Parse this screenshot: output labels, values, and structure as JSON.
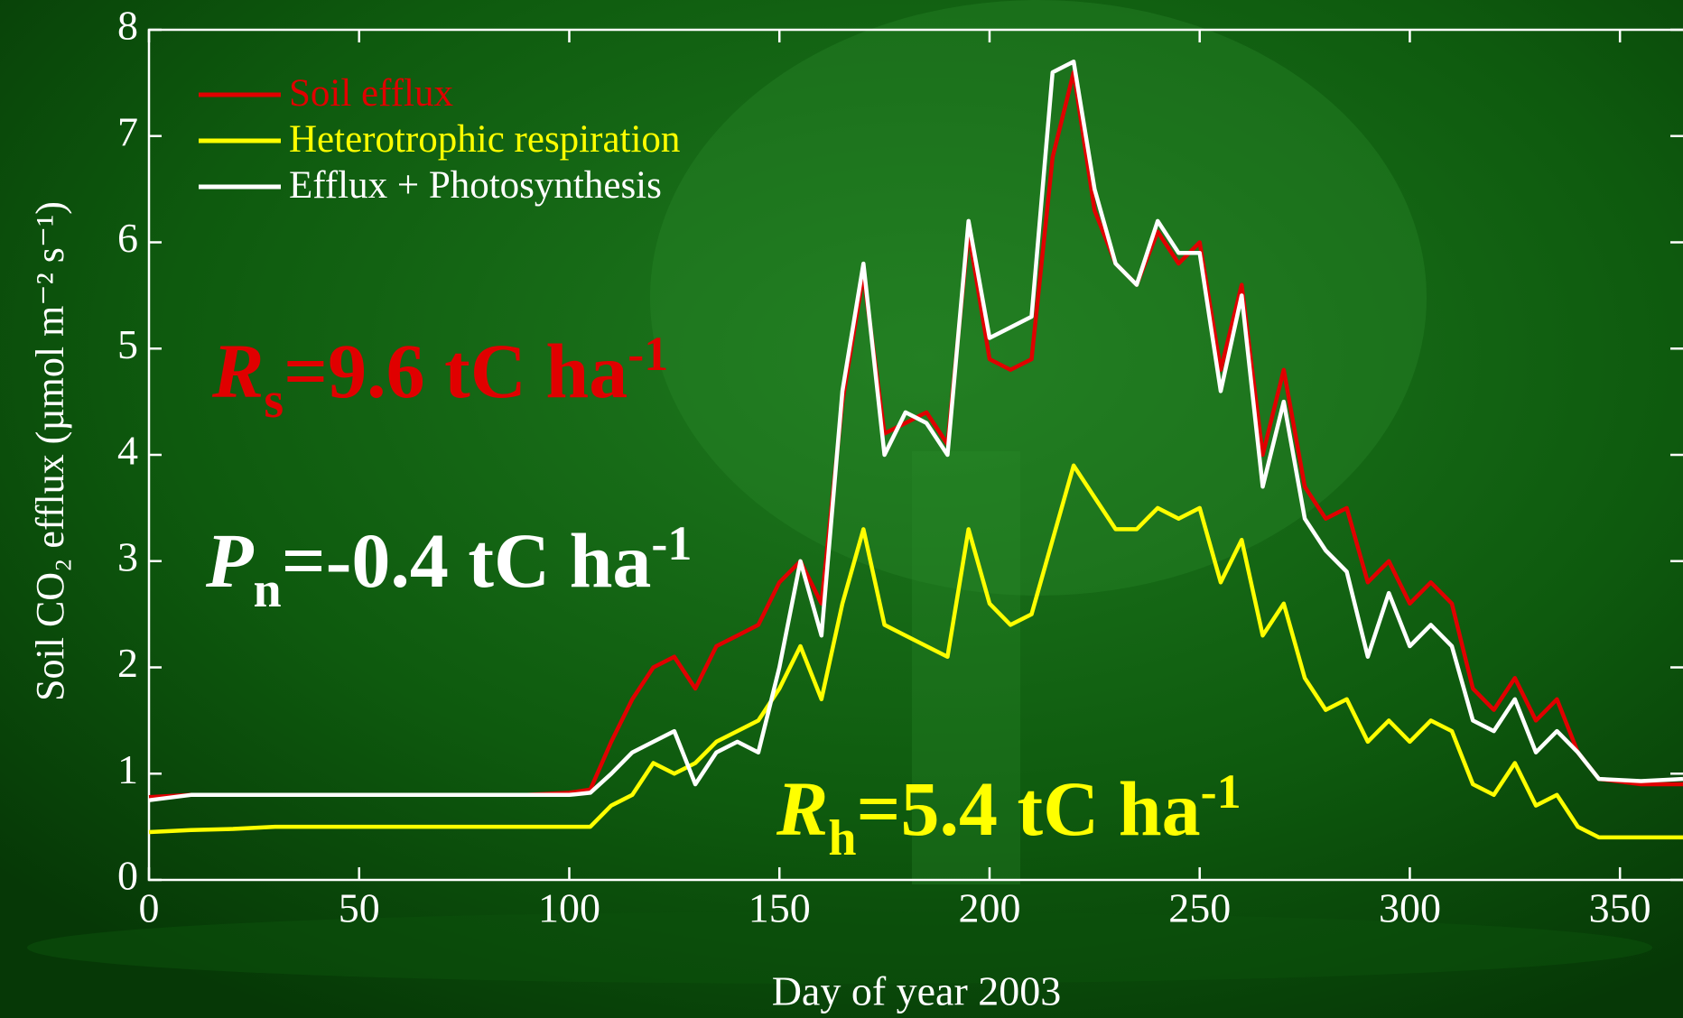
{
  "chart_data": {
    "type": "line",
    "xlabel": "Day of year 2003",
    "ylabel": "Soil CO₂ efflux (µmol m⁻² s⁻¹)",
    "x": [
      0,
      10,
      20,
      30,
      40,
      50,
      60,
      70,
      80,
      90,
      100,
      105,
      110,
      115,
      120,
      125,
      130,
      135,
      140,
      145,
      150,
      155,
      160,
      165,
      170,
      175,
      180,
      185,
      190,
      195,
      200,
      205,
      210,
      215,
      220,
      225,
      230,
      235,
      240,
      245,
      250,
      255,
      260,
      265,
      270,
      275,
      280,
      285,
      290,
      295,
      300,
      305,
      310,
      315,
      320,
      325,
      330,
      335,
      340,
      345,
      355,
      365
    ],
    "series": [
      {
        "name": "Soil efflux",
        "color": "#e00000",
        "values": [
          0.78,
          0.8,
          0.8,
          0.8,
          0.8,
          0.8,
          0.8,
          0.8,
          0.8,
          0.8,
          0.82,
          0.85,
          1.3,
          1.7,
          2.0,
          2.1,
          1.8,
          2.2,
          2.3,
          2.4,
          2.8,
          3.0,
          2.6,
          4.5,
          5.7,
          4.2,
          4.3,
          4.4,
          4.1,
          6.1,
          4.9,
          4.8,
          4.9,
          6.8,
          7.6,
          6.3,
          5.8,
          5.6,
          6.1,
          5.8,
          6.0,
          4.8,
          5.6,
          4.0,
          4.8,
          3.7,
          3.4,
          3.5,
          2.8,
          3.0,
          2.6,
          2.8,
          2.6,
          1.8,
          1.6,
          1.9,
          1.5,
          1.7,
          1.2,
          0.95,
          0.9,
          0.9
        ]
      },
      {
        "name": "Heterotrophic respiration",
        "color": "#ffff00",
        "values": [
          0.45,
          0.47,
          0.48,
          0.5,
          0.5,
          0.5,
          0.5,
          0.5,
          0.5,
          0.5,
          0.5,
          0.5,
          0.7,
          0.8,
          1.1,
          1.0,
          1.1,
          1.3,
          1.4,
          1.5,
          1.8,
          2.2,
          1.7,
          2.6,
          3.3,
          2.4,
          2.3,
          2.2,
          2.1,
          3.3,
          2.6,
          2.4,
          2.5,
          3.2,
          3.9,
          3.6,
          3.3,
          3.3,
          3.5,
          3.4,
          3.5,
          2.8,
          3.2,
          2.3,
          2.6,
          1.9,
          1.6,
          1.7,
          1.3,
          1.5,
          1.3,
          1.5,
          1.4,
          0.9,
          0.8,
          1.1,
          0.7,
          0.8,
          0.5,
          0.4,
          0.4,
          0.4
        ]
      },
      {
        "name": "Efflux + Photosynthesis",
        "color": "#ffffff",
        "values": [
          0.75,
          0.8,
          0.8,
          0.8,
          0.8,
          0.8,
          0.8,
          0.8,
          0.8,
          0.8,
          0.8,
          0.82,
          1.0,
          1.2,
          1.3,
          1.4,
          0.9,
          1.2,
          1.3,
          1.2,
          2.0,
          3.0,
          2.3,
          4.6,
          5.8,
          4.0,
          4.4,
          4.3,
          4.0,
          6.2,
          5.1,
          5.2,
          5.3,
          7.6,
          7.7,
          6.5,
          5.8,
          5.6,
          6.2,
          5.9,
          5.9,
          4.6,
          5.5,
          3.7,
          4.5,
          3.4,
          3.1,
          2.9,
          2.1,
          2.7,
          2.2,
          2.4,
          2.2,
          1.5,
          1.4,
          1.7,
          1.2,
          1.4,
          1.2,
          0.95,
          0.93,
          0.95
        ]
      }
    ],
    "xlim": [
      0,
      365
    ],
    "ylim": [
      0,
      8
    ],
    "xticks": [
      0,
      50,
      100,
      150,
      200,
      250,
      300,
      350
    ],
    "yticks": [
      0,
      1,
      2,
      3,
      4,
      5,
      6,
      7,
      8
    ],
    "annotations": [
      {
        "symbol": "R",
        "subscript": "s",
        "text": "=9.6 tC ha",
        "superscript": "-1",
        "color": "#e00000"
      },
      {
        "symbol": "P",
        "subscript": "n",
        "text": "=-0.4 tC ha",
        "superscript": "-1",
        "color": "#ffffff"
      },
      {
        "symbol": "R",
        "subscript": "h",
        "text": "=5.4 tC ha",
        "superscript": "-1",
        "color": "#ffff00"
      }
    ]
  }
}
